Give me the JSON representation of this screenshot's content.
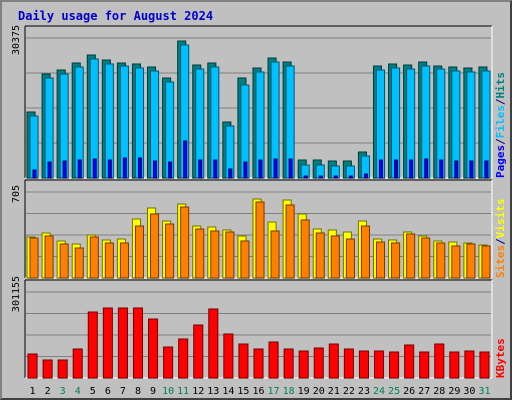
{
  "title": "Daily usage for August 2024",
  "chart_data": {
    "type": "bar",
    "categories": [
      "1",
      "2",
      "3",
      "4",
      "5",
      "6",
      "7",
      "8",
      "9",
      "10",
      "11",
      "12",
      "13",
      "14",
      "15",
      "16",
      "17",
      "18",
      "19",
      "20",
      "21",
      "22",
      "23",
      "24",
      "25",
      "26",
      "27",
      "28",
      "29",
      "30",
      "31"
    ],
    "weekend_days": [
      "3",
      "4",
      "10",
      "11",
      "17",
      "18",
      "24",
      "25",
      "31"
    ],
    "panels": [
      {
        "id": "hits-files-pages",
        "ymax_label": "30375",
        "ymax": 30375,
        "legend": [
          "Pages",
          "/",
          "Files",
          "/",
          "Hits"
        ],
        "series": [
          {
            "name": "Hits",
            "color": "#008080",
            "values": [
              14300,
              22600,
              23400,
              25000,
              26600,
              25600,
              25000,
              24800,
              24100,
              21800,
              29800,
              24500,
              25000,
              12100,
              21800,
              23900,
              26000,
              25200,
              4000,
              3800,
              3700,
              3600,
              5700,
              24300,
              24700,
              24600,
              25100,
              24400,
              24100,
              23800,
              24000
            ]
          },
          {
            "name": "Files",
            "color": "#00c0ff",
            "values": [
              13400,
              21800,
              22500,
              24100,
              25800,
              24800,
              24200,
              23900,
              23300,
              20900,
              28800,
              23600,
              24100,
              11300,
              20100,
              23000,
              25200,
              24300,
              2900,
              2800,
              2700,
              2600,
              4700,
              23400,
              23800,
              23700,
              24200,
              23600,
              23300,
              23000,
              23200
            ]
          },
          {
            "name": "Pages",
            "color": "#0000ff",
            "values": [
              1800,
              3500,
              3600,
              3800,
              4200,
              4000,
              4300,
              4300,
              3700,
              3500,
              8000,
              3800,
              3800,
              1900,
              3500,
              3800,
              4100,
              4100,
              500,
              500,
              400,
              400,
              800,
              3800,
              3900,
              3900,
              4100,
              3800,
              3700,
              3700,
              3700
            ]
          }
        ]
      },
      {
        "id": "visits-sites",
        "ymax_label": "705",
        "ymax": 705,
        "legend": [
          "Sites",
          "/",
          "Visits"
        ],
        "series": [
          {
            "name": "Visits",
            "color": "#ffff00",
            "values": [
              335,
              367,
              304,
              282,
              356,
              308,
              319,
              480,
              576,
              468,
              610,
              428,
              414,
              396,
              342,
              645,
              456,
              640,
              527,
              402,
              394,
              376,
              466,
              318,
              314,
              377,
              343,
              306,
              294,
              283,
              274
            ]
          },
          {
            "name": "Sites",
            "color": "#ff8000",
            "values": [
              324,
              344,
              276,
              244,
              337,
              284,
              284,
              426,
              526,
              439,
              578,
              398,
              386,
              373,
              303,
              622,
              383,
              602,
              476,
              368,
              345,
              323,
              423,
              293,
              289,
              357,
              325,
              290,
              264,
              277,
              261
            ]
          }
        ]
      },
      {
        "id": "kbytes",
        "ymax_label": "301155",
        "ymax": 301155,
        "legend": [
          "KBytes"
        ],
        "series": [
          {
            "name": "KBytes",
            "color": "#ff0000",
            "values": [
              85000,
              62000,
              62000,
              100000,
              230000,
              245000,
              245000,
              245000,
              208000,
              110000,
              135000,
              185000,
              240000,
              155000,
              120000,
              100000,
              125000,
              100000,
              95000,
              105000,
              120000,
              100000,
              95000,
              95000,
              90000,
              115000,
              90000,
              120000,
              90000,
              95000,
              90000
            ]
          }
        ]
      }
    ],
    "grid": true,
    "legend_placement": "right-vertical"
  }
}
